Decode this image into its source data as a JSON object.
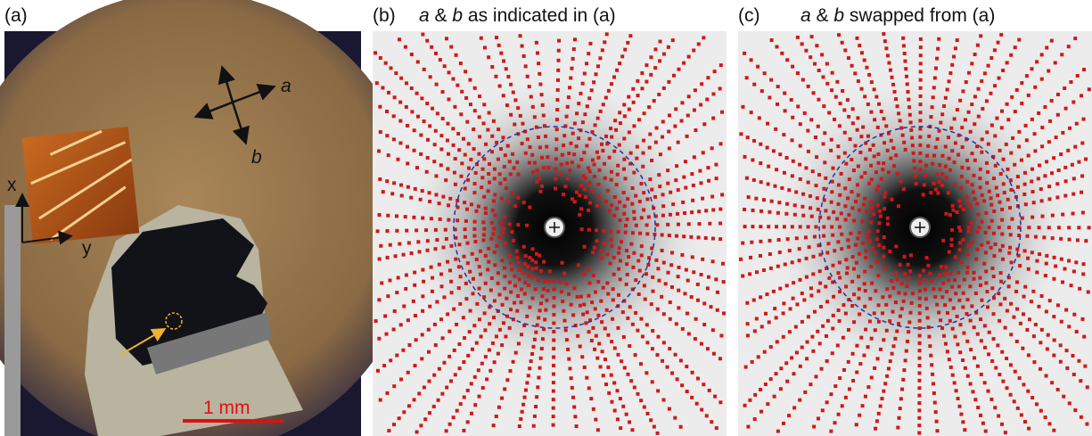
{
  "panel_a": {
    "label": "(a)",
    "axis_a": "a",
    "axis_b": "b",
    "inset_x": "x",
    "inset_y": "y",
    "scale_bar": "1 mm"
  },
  "panel_b": {
    "label": "(b)",
    "title_parts": [
      "a",
      "&",
      "b",
      "as indicated in (a)"
    ]
  },
  "panel_c": {
    "label": "(c)",
    "title_parts": [
      "a",
      "&",
      "b",
      "swapped from (a)"
    ]
  }
}
